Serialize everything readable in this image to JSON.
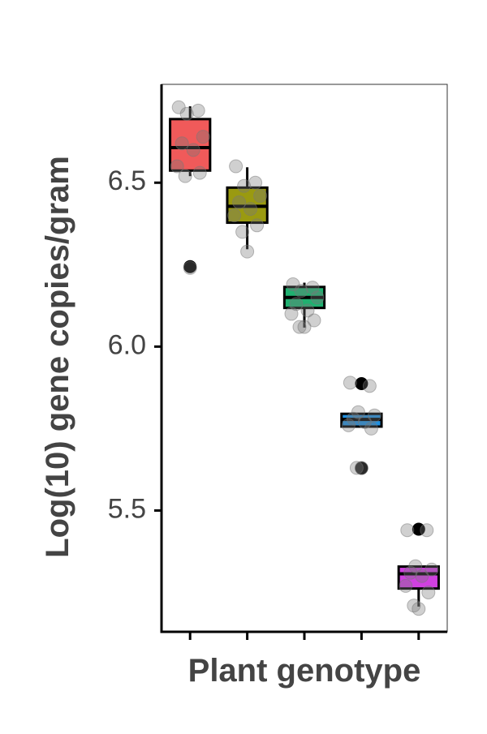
{
  "chart_data": {
    "type": "box",
    "xlabel": "Plant genotype",
    "ylabel": "Log(10) gene copies/gram",
    "categories": [
      null,
      null,
      null,
      null,
      null
    ],
    "ylim": [
      5.13,
      6.8
    ],
    "yticks": [
      5.5,
      {
        "value": 6,
        "label": "6.0"
      },
      6.5
    ],
    "series": [
      {
        "color": "#f05a5a",
        "whisker_low": 6.52,
        "q1": 6.537,
        "median": 6.607,
        "q3": 6.694,
        "whisker_high": 6.733,
        "outliers": [
          6.244
        ],
        "points": [
          6.73,
          6.72,
          6.71,
          6.64,
          6.62,
          6.6,
          6.55,
          6.53,
          6.52,
          6.24
        ]
      },
      {
        "color": "#9a9a10",
        "whisker_low": 6.297,
        "q1": 6.378,
        "median": 6.428,
        "q3": 6.485,
        "whisker_high": 6.547,
        "outliers": [],
        "points": [
          6.55,
          6.5,
          6.49,
          6.46,
          6.44,
          6.42,
          6.4,
          6.37,
          6.35,
          6.29
        ]
      },
      {
        "color": "#20b070",
        "whisker_low": 6.058,
        "q1": 6.118,
        "median": 6.15,
        "q3": 6.182,
        "whisker_high": 6.195,
        "outliers": [],
        "points": [
          6.19,
          6.18,
          6.17,
          6.15,
          6.13,
          6.11,
          6.1,
          6.08,
          6.06,
          6.06
        ]
      },
      {
        "color": "#2090e0",
        "whisker_low": 5.756,
        "q1": 5.756,
        "median": 5.778,
        "q3": 5.795,
        "whisker_high": 5.795,
        "outliers": [
          5.887,
          5.629
        ],
        "points": [
          5.89,
          5.88,
          5.8,
          5.79,
          5.78,
          5.77,
          5.76,
          5.75,
          5.63,
          5.63
        ]
      },
      {
        "color": "#d040e0",
        "whisker_low": 5.207,
        "q1": 5.262,
        "median": 5.307,
        "q3": 5.329,
        "whisker_high": 5.329,
        "outliers": [
          5.443
        ],
        "points": [
          5.44,
          5.44,
          5.33,
          5.32,
          5.31,
          5.3,
          5.27,
          5.25,
          5.21,
          5.2
        ]
      }
    ]
  }
}
